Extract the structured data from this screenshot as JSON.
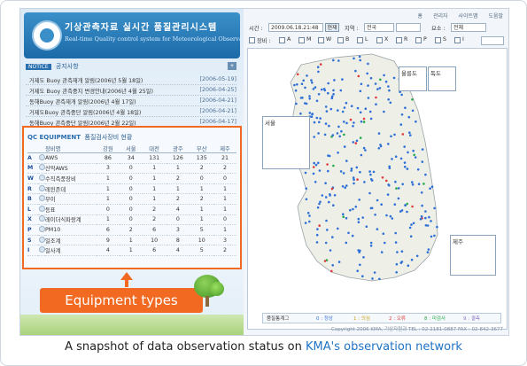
{
  "header": {
    "title_ko": "기상관측자료 실시간 품질관리시스템",
    "subtitle": "Real-time Quality control system for Meteorological Observational Data"
  },
  "topnav": [
    "홈",
    "계",
    "관리자",
    "사이트맵",
    "도움말"
  ],
  "notice": {
    "tag": "NOTICE",
    "title": "공지사항",
    "items": [
      {
        "text": "거제도 Buoy 관측재개 알림(2006년 5월 18일)",
        "date": "[2006-05-19]"
      },
      {
        "text": "거제도 Buoy 관측중지 변경안내(2006년 4월 25일)",
        "date": "[2006-04-25]"
      },
      {
        "text": "동해Buoy 관측재개 알림(2006년 4월 17일)",
        "date": "[2006-04-21]"
      },
      {
        "text": "거제도Buoy 관측중단 알림(2006년 4월 18일)",
        "date": "[2006-04-21]"
      },
      {
        "text": "동해Buoy 관측중단 알림(2006년 2월 22일)",
        "date": "[2006-04-17]"
      }
    ]
  },
  "equipment": {
    "tag": "QC EQUIPMENT",
    "title": "품질검사장비 현황",
    "columns": [
      "장비명",
      "강원",
      "서울",
      "대전",
      "광주",
      "부산",
      "제주"
    ],
    "rows": [
      {
        "code": "A",
        "name": "AWS",
        "values": [
          "86",
          "34",
          "131",
          "126",
          "135",
          "21"
        ]
      },
      {
        "code": "M",
        "name": "산악AWS",
        "values": [
          "3",
          "0",
          "1",
          "1",
          "2",
          "2"
        ]
      },
      {
        "code": "W",
        "name": "수직측풍장비",
        "values": [
          "1",
          "0",
          "1",
          "2",
          "0",
          "0"
        ]
      },
      {
        "code": "R",
        "name": "레윈존데",
        "values": [
          "1",
          "0",
          "1",
          "1",
          "1",
          "1"
        ]
      },
      {
        "code": "B",
        "name": "부이",
        "values": [
          "1",
          "0",
          "1",
          "2",
          "2",
          "1"
        ]
      },
      {
        "code": "L",
        "name": "등표",
        "values": [
          "0",
          "0",
          "2",
          "4",
          "1",
          "1"
        ]
      },
      {
        "code": "X",
        "name": "레이더식파랑계",
        "values": [
          "1",
          "0",
          "2",
          "0",
          "1",
          "0"
        ]
      },
      {
        "code": "P",
        "name": "PM10",
        "values": [
          "6",
          "2",
          "6",
          "3",
          "5",
          "1"
        ]
      },
      {
        "code": "S",
        "name": "일조계",
        "values": [
          "9",
          "1",
          "10",
          "8",
          "10",
          "3"
        ]
      },
      {
        "code": "I",
        "name": "일사계",
        "values": [
          "4",
          "1",
          "6",
          "4",
          "5",
          "2"
        ]
      }
    ]
  },
  "callout": {
    "label": "Equipment types"
  },
  "controls": {
    "time_label": "시간 :",
    "time_value": "2009.06.18.21:48",
    "refresh": "현재",
    "region_label": "지역 :",
    "region_value": "전국",
    "element_label": "요소 :",
    "element_value": "전체",
    "equip_label": "장비 :",
    "equip_options": [
      "A",
      "M",
      "W",
      "B",
      "L",
      "X",
      "R",
      "P",
      "S",
      "I"
    ]
  },
  "map": {
    "insets": [
      "울릉도",
      "독도",
      "서울",
      "제주"
    ],
    "legend": [
      "품질통계그",
      "0 : 정상",
      "1 : 의심",
      "2 : 오류",
      "8 : 미검사",
      "9 : 결측"
    ]
  },
  "colors": {
    "normal": "#2f6fd6",
    "error": "#e03a3a",
    "suspect": "#27a84a",
    "accent": "#f26a22"
  },
  "copyright": "Copyright 2006 KMA, 기상자원과 TEL : 02-2181-0887 FAX : 02-842-3677",
  "caption": {
    "pre": "A snapshot of data observation status on ",
    "highlight": "KMA's observation network"
  }
}
